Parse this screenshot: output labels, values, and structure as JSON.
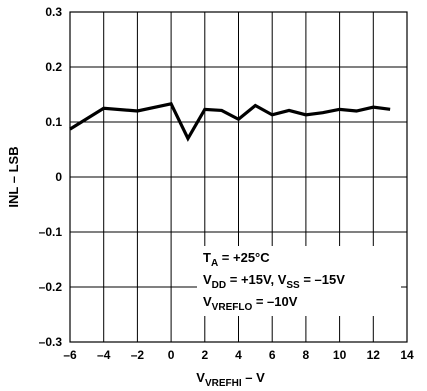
{
  "chart_data": {
    "type": "line",
    "xlabel": "V",
    "xlabel_sub": "VREFHI",
    "xlabel_unit": " – V",
    "ylabel": "INL – LSB",
    "xlim": [
      -6,
      14
    ],
    "ylim": [
      -0.3,
      0.3
    ],
    "x_ticks": [
      -6,
      -4,
      -2,
      0,
      2,
      4,
      6,
      8,
      10,
      12,
      14
    ],
    "x_tick_labels": [
      "–6",
      "–4",
      "–2",
      "0",
      "2",
      "4",
      "6",
      "8",
      "10",
      "12",
      "14"
    ],
    "y_ticks": [
      -0.3,
      -0.2,
      -0.1,
      0,
      0.1,
      0.2,
      0.3
    ],
    "y_tick_labels": [
      "–0.3",
      "–0.2",
      "–0.1",
      "0",
      "0.1",
      "0.2",
      "0.3"
    ],
    "grid": true,
    "series": [
      {
        "x": [
          -6,
          -4,
          -2,
          0,
          1,
          2,
          3,
          4,
          5,
          6,
          7,
          8,
          9,
          10,
          11,
          12,
          13
        ],
        "y": [
          0.087,
          0.125,
          0.12,
          0.133,
          0.07,
          0.123,
          0.121,
          0.105,
          0.13,
          0.113,
          0.121,
          0.113,
          0.117,
          0.123,
          0.12,
          0.127,
          0.123
        ]
      }
    ],
    "annotations": [
      [
        {
          "t": "T"
        },
        {
          "t": "A",
          "sub": true
        },
        {
          "t": " = +25°C"
        }
      ],
      [
        {
          "t": "V"
        },
        {
          "t": "DD",
          "sub": true
        },
        {
          "t": " = +15V, V"
        },
        {
          "t": "SS",
          "sub": true
        },
        {
          "t": " = –15V"
        }
      ],
      [
        {
          "t": "V"
        },
        {
          "t": "VREFLO",
          "sub": true
        },
        {
          "t": " = –10V"
        }
      ]
    ]
  }
}
